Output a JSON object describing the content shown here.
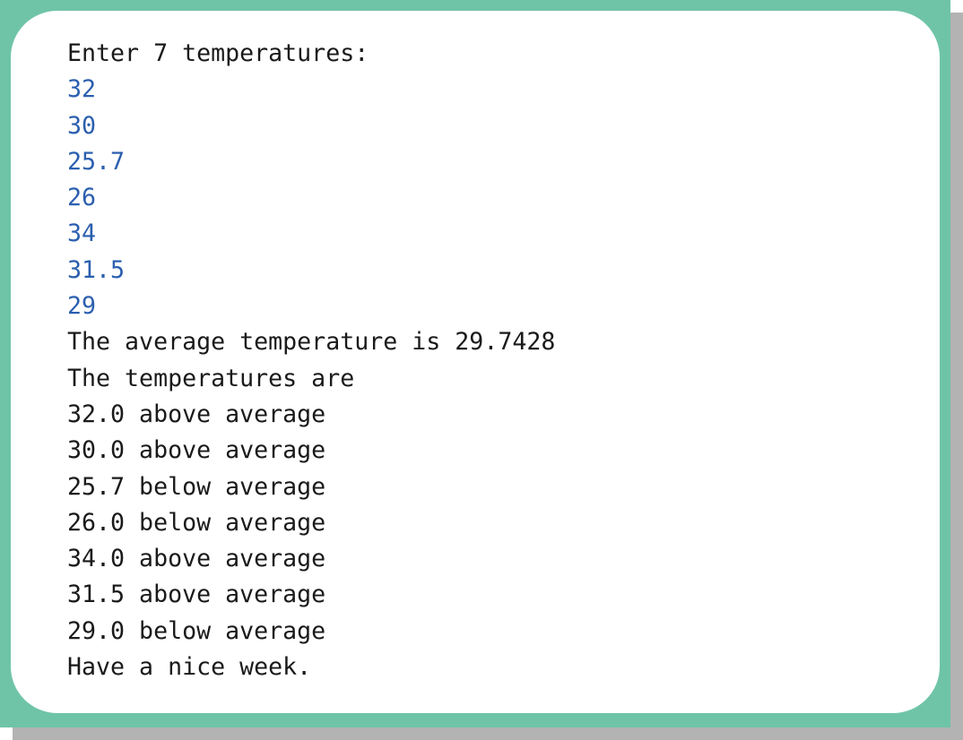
{
  "console": {
    "prompt": "Enter 7 temperatures:",
    "inputs": [
      "32",
      "30",
      "25.7",
      "26",
      "34",
      "31.5",
      "29"
    ],
    "outputs": [
      "The average temperature is 29.7428",
      "The temperatures are",
      "32.0 above average",
      "30.0 above average",
      "25.7 below average",
      "26.0 below average",
      "34.0 above average",
      "31.5 above average",
      "29.0 below average",
      "Have a nice week."
    ]
  }
}
